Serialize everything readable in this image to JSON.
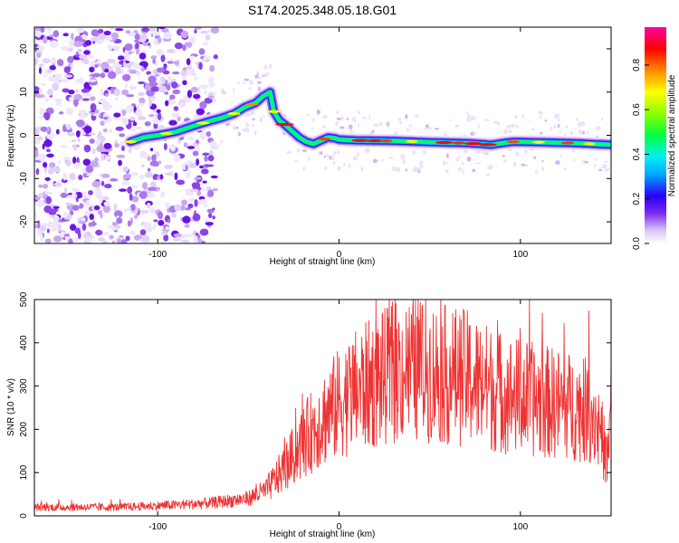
{
  "chart_data": [
    {
      "type": "heatmap",
      "title": "S174.2025.348.05.18.G01",
      "xlabel": "Height of straight line (km)",
      "ylabel": "Frequency (Hz)",
      "xlim": [
        -168,
        150
      ],
      "ylim": [
        -25,
        25
      ],
      "xticks": [
        -100,
        0,
        100
      ],
      "xtick_labels": [
        "-100",
        "0",
        "100"
      ],
      "yticks": [
        -20,
        -10,
        0,
        10,
        20
      ],
      "ytick_labels": [
        "-20",
        "-10",
        "0",
        "10",
        "20"
      ],
      "ridge": {
        "x": [
          -115,
          -108,
          -100,
          -90,
          -80,
          -72,
          -65,
          -58,
          -52,
          -46,
          -42,
          -38,
          -36,
          -33,
          -30,
          -26,
          -22,
          -18,
          -14,
          -10,
          -6,
          -2,
          0,
          10,
          30,
          50,
          70,
          78,
          84,
          90,
          96,
          110,
          130,
          150
        ],
        "y": [
          -1.5,
          -0.5,
          0,
          0.8,
          2.2,
          3.2,
          4,
          5,
          6.5,
          7.5,
          9,
          10,
          5.5,
          3.5,
          2.5,
          1,
          -0.5,
          -1.5,
          -2,
          -1.2,
          -0.5,
          -0.7,
          -1,
          -1.2,
          -1.3,
          -1.6,
          -1.8,
          -2,
          -2.2,
          -1.8,
          -1.5,
          -1.6,
          -1.8,
          -2.2
        ]
      },
      "colorbar": {
        "label": "Normalized spectral amplitude",
        "ticks": [
          0.0,
          0.2,
          0.4,
          0.6,
          0.8
        ],
        "tick_labels": [
          "0.0",
          "0.2",
          "0.4",
          "0.6",
          "0.8"
        ],
        "range": [
          0,
          0.97
        ]
      }
    },
    {
      "type": "line",
      "xlabel": "Height of straight line (km)",
      "ylabel": "SNR (10 * v/v)",
      "xlim": [
        -168,
        150
      ],
      "ylim": [
        0,
        500
      ],
      "xticks": [
        -100,
        0,
        100
      ],
      "xtick_labels": [
        "-100",
        "0",
        "100"
      ],
      "yticks": [
        0,
        100,
        200,
        300,
        400,
        500
      ],
      "ytick_labels": [
        "0",
        "100",
        "200",
        "300",
        "400",
        "500"
      ],
      "series": [
        {
          "name": "SNR",
          "color": "#ee3333",
          "envelope_x": [
            -168,
            -120,
            -90,
            -70,
            -50,
            -40,
            -30,
            -20,
            -10,
            0,
            10,
            20,
            30,
            40,
            50,
            60,
            70,
            80,
            90,
            100,
            110,
            120,
            130,
            140,
            145,
            148,
            150
          ],
          "envelope_y": [
            20,
            20,
            25,
            30,
            40,
            60,
            110,
            170,
            220,
            260,
            290,
            310,
            330,
            340,
            335,
            325,
            320,
            300,
            285,
            275,
            265,
            260,
            250,
            240,
            180,
            120,
            260
          ]
        }
      ]
    }
  ]
}
